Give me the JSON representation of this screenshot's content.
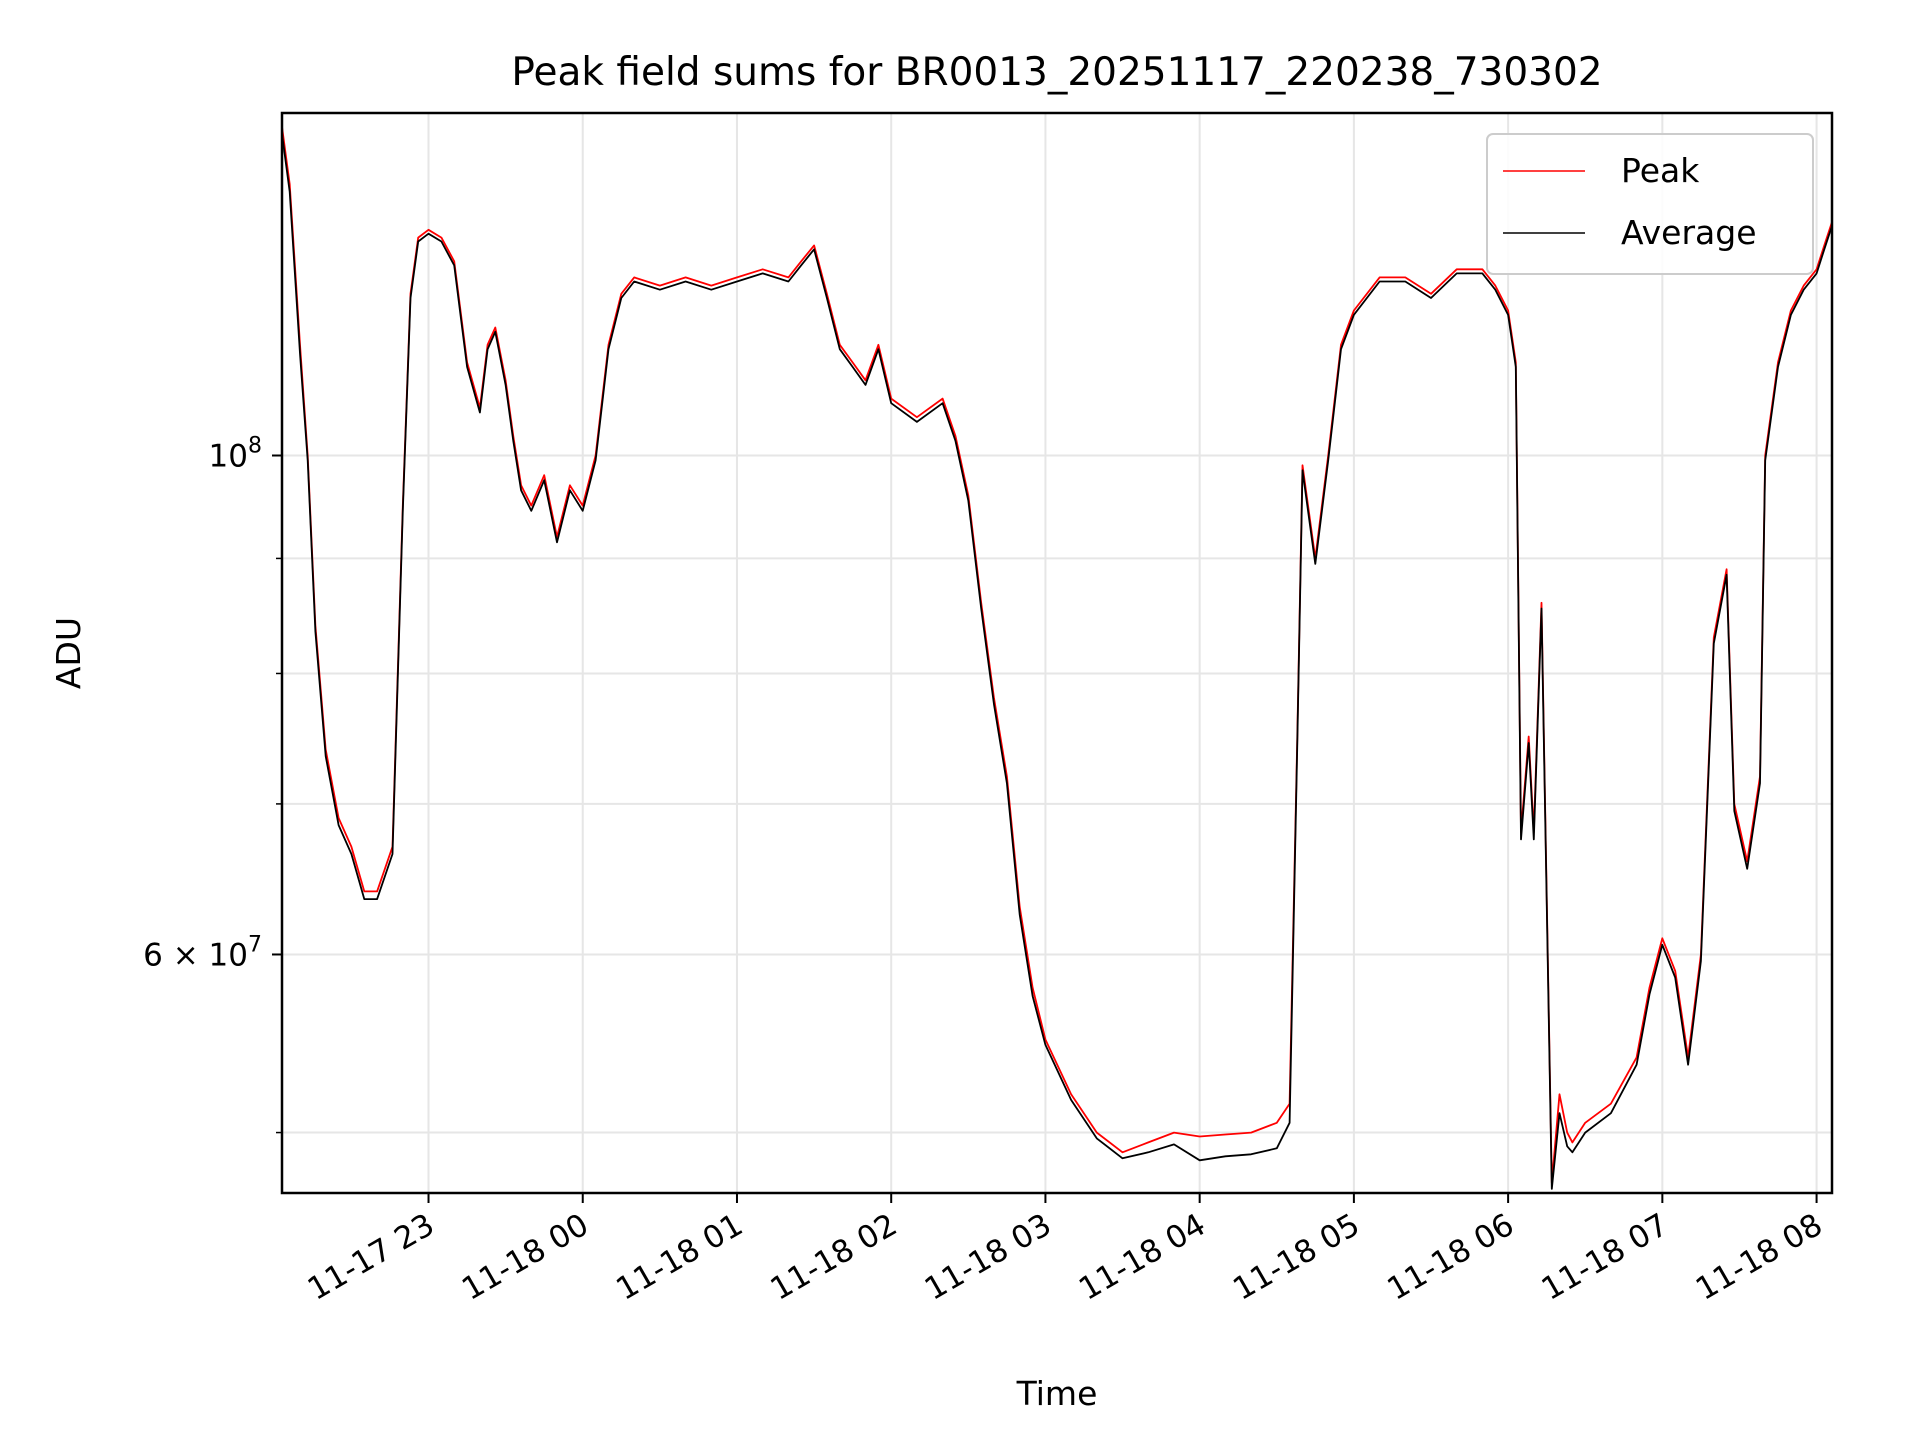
{
  "chart_data": {
    "type": "line",
    "title": "Peak field sums for BR0013_20251117_220238_730302",
    "xlabel": "Time",
    "ylabel": "ADU",
    "yscale": "log",
    "ylim": [
      47000000,
      142000000
    ],
    "xlim": [
      "2025-11-17 22:03",
      "2025-11-18 08:06"
    ],
    "x_ticks": [
      "11-17 23",
      "11-18 00",
      "11-18 01",
      "11-18 02",
      "11-18 03",
      "11-18 04",
      "11-18 05",
      "11-18 06",
      "11-18 07",
      "11-18 08"
    ],
    "y_ticks": [
      {
        "value": 100000000,
        "base": "10",
        "exp": "8"
      },
      {
        "value": 60000000,
        "base": "6 × 10",
        "exp": "7"
      }
    ],
    "y_minor_ticks": [
      50000000,
      70000000,
      80000000,
      90000000
    ],
    "grid": true,
    "legend_position": "top-right",
    "x": [
      "2025-11-17 22:03",
      "2025-11-17 22:06",
      "2025-11-17 22:10",
      "2025-11-17 22:13",
      "2025-11-17 22:16",
      "2025-11-17 22:20",
      "2025-11-17 22:25",
      "2025-11-17 22:30",
      "2025-11-17 22:35",
      "2025-11-17 22:40",
      "2025-11-17 22:46",
      "2025-11-17 22:50",
      "2025-11-17 22:53",
      "2025-11-17 22:56",
      "2025-11-17 23:00",
      "2025-11-17 23:05",
      "2025-11-17 23:10",
      "2025-11-17 23:15",
      "2025-11-17 23:20",
      "2025-11-17 23:23",
      "2025-11-17 23:26",
      "2025-11-17 23:30",
      "2025-11-17 23:33",
      "2025-11-17 23:36",
      "2025-11-17 23:40",
      "2025-11-17 23:45",
      "2025-11-17 23:50",
      "2025-11-17 23:55",
      "2025-11-18 00:00",
      "2025-11-18 00:05",
      "2025-11-18 00:10",
      "2025-11-18 00:15",
      "2025-11-18 00:20",
      "2025-11-18 00:30",
      "2025-11-18 00:40",
      "2025-11-18 00:50",
      "2025-11-18 01:00",
      "2025-11-18 01:10",
      "2025-11-18 01:20",
      "2025-11-18 01:25",
      "2025-11-18 01:30",
      "2025-11-18 01:35",
      "2025-11-18 01:40",
      "2025-11-18 01:45",
      "2025-11-18 01:50",
      "2025-11-18 01:55",
      "2025-11-18 02:00",
      "2025-11-18 02:10",
      "2025-11-18 02:20",
      "2025-11-18 02:25",
      "2025-11-18 02:30",
      "2025-11-18 02:35",
      "2025-11-18 02:40",
      "2025-11-18 02:45",
      "2025-11-18 02:50",
      "2025-11-18 02:55",
      "2025-11-18 03:00",
      "2025-11-18 03:10",
      "2025-11-18 03:20",
      "2025-11-18 03:30",
      "2025-11-18 03:40",
      "2025-11-18 03:50",
      "2025-11-18 04:00",
      "2025-11-18 04:10",
      "2025-11-18 04:20",
      "2025-11-18 04:30",
      "2025-11-18 04:35",
      "2025-11-18 04:38",
      "2025-11-18 04:40",
      "2025-11-18 04:45",
      "2025-11-18 04:50",
      "2025-11-18 04:55",
      "2025-11-18 05:00",
      "2025-11-18 05:10",
      "2025-11-18 05:20",
      "2025-11-18 05:30",
      "2025-11-18 05:40",
      "2025-11-18 05:50",
      "2025-11-18 05:55",
      "2025-11-18 06:00",
      "2025-11-18 06:03",
      "2025-11-18 06:05",
      "2025-11-18 06:08",
      "2025-11-18 06:10",
      "2025-11-18 06:13",
      "2025-11-18 06:17",
      "2025-11-18 06:20",
      "2025-11-18 06:23",
      "2025-11-18 06:25",
      "2025-11-18 06:30",
      "2025-11-18 06:40",
      "2025-11-18 06:50",
      "2025-11-18 06:55",
      "2025-11-18 07:00",
      "2025-11-18 07:05",
      "2025-11-18 07:10",
      "2025-11-18 07:15",
      "2025-11-18 07:20",
      "2025-11-18 07:25",
      "2025-11-18 07:28",
      "2025-11-18 07:33",
      "2025-11-18 07:38",
      "2025-11-18 07:40",
      "2025-11-18 07:45",
      "2025-11-18 07:50",
      "2025-11-18 07:55",
      "2025-11-18 08:00",
      "2025-11-18 08:03",
      "2025-11-18 08:06"
    ],
    "series": [
      {
        "name": "Peak",
        "color": "#ff0000",
        "values": [
          140000000,
          132000000,
          112000000,
          100000000,
          84000000,
          74000000,
          69000000,
          67000000,
          64000000,
          64000000,
          67000000,
          95000000,
          118000000,
          125000000,
          126000000,
          125000000,
          122000000,
          110000000,
          105000000,
          112000000,
          114000000,
          108000000,
          102000000,
          97000000,
          95000000,
          98000000,
          92000000,
          97000000,
          95000000,
          100000000,
          112000000,
          118000000,
          120000000,
          119000000,
          120000000,
          119000000,
          120000000,
          121000000,
          120000000,
          122000000,
          124000000,
          118000000,
          112000000,
          110000000,
          108000000,
          112000000,
          106000000,
          104000000,
          106000000,
          102000000,
          96000000,
          86000000,
          78000000,
          72000000,
          63000000,
          58000000,
          55000000,
          52000000,
          50000000,
          49000000,
          49500000,
          50000000,
          49800000,
          49900000,
          50000000,
          50500000,
          51500000,
          75000000,
          99000000,
          90000000,
          100000000,
          112000000,
          116000000,
          120000000,
          120000000,
          118000000,
          121000000,
          121000000,
          119000000,
          116000000,
          110000000,
          68000000,
          75000000,
          68000000,
          86000000,
          47500000,
          52000000,
          50000000,
          49500000,
          50500000,
          51500000,
          54000000,
          58000000,
          61000000,
          59000000,
          54000000,
          60000000,
          83000000,
          89000000,
          70000000,
          66000000,
          72000000,
          100000000,
          110000000,
          116000000,
          119000000,
          121000000,
          124000000,
          127000000
        ]
      },
      {
        "name": "Average",
        "color": "#000000",
        "values": [
          139000000,
          131000000,
          111000000,
          99500000,
          83500000,
          73500000,
          68500000,
          66500000,
          63500000,
          63500000,
          66500000,
          94500000,
          117500000,
          124500000,
          125500000,
          124500000,
          121500000,
          109500000,
          104500000,
          111500000,
          113500000,
          107500000,
          101500000,
          96500000,
          94500000,
          97500000,
          91500000,
          96500000,
          94500000,
          99500000,
          111500000,
          117500000,
          119500000,
          118500000,
          119500000,
          118500000,
          119500000,
          120500000,
          119500000,
          121500000,
          123500000,
          117500000,
          111500000,
          109500000,
          107500000,
          111500000,
          105500000,
          103500000,
          105500000,
          101500000,
          95500000,
          85500000,
          77500000,
          71500000,
          62500000,
          57500000,
          54700000,
          51700000,
          49700000,
          48700000,
          49000000,
          49400000,
          48600000,
          48800000,
          48900000,
          49200000,
          50500000,
          74500000,
          98500000,
          89500000,
          99500000,
          111500000,
          115500000,
          119500000,
          119500000,
          117500000,
          120500000,
          120500000,
          118500000,
          115500000,
          109500000,
          67500000,
          74500000,
          67500000,
          85500000,
          47200000,
          51000000,
          49300000,
          49000000,
          50000000,
          51000000,
          53600000,
          57600000,
          60600000,
          58600000,
          53600000,
          59600000,
          82500000,
          88500000,
          69500000,
          65500000,
          71500000,
          99500000,
          109500000,
          115500000,
          118500000,
          120500000,
          123500000,
          126500000
        ]
      }
    ]
  }
}
